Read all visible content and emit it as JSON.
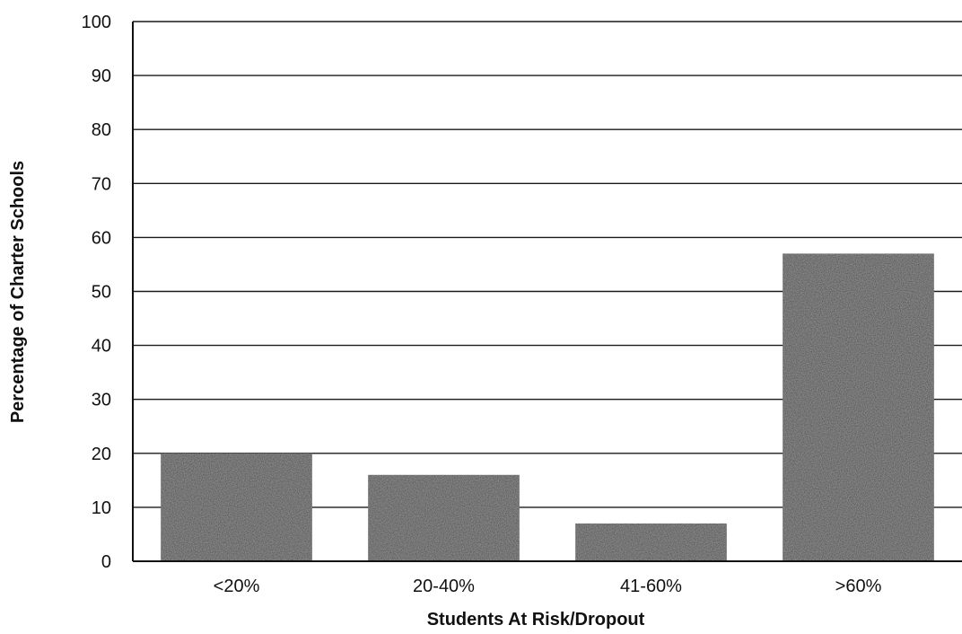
{
  "chart_data": {
    "type": "bar",
    "categories": [
      "<20%",
      "20-40%",
      "41-60%",
      ">60%"
    ],
    "values": [
      20,
      16,
      7,
      57
    ],
    "title": "",
    "xlabel": "Students At Risk/Dropout",
    "ylabel": "Percentage of Charter Schools",
    "ylim": [
      0,
      100
    ],
    "yticks": [
      0,
      10,
      20,
      30,
      40,
      50,
      60,
      70,
      80,
      90,
      100
    ],
    "ytick_labels": [
      "0",
      "10",
      "20",
      "30",
      "40",
      "50",
      "60",
      "70",
      "80",
      "90",
      "100"
    ],
    "grid": true,
    "legend": "none",
    "bar_color": "#3a3a3a"
  }
}
